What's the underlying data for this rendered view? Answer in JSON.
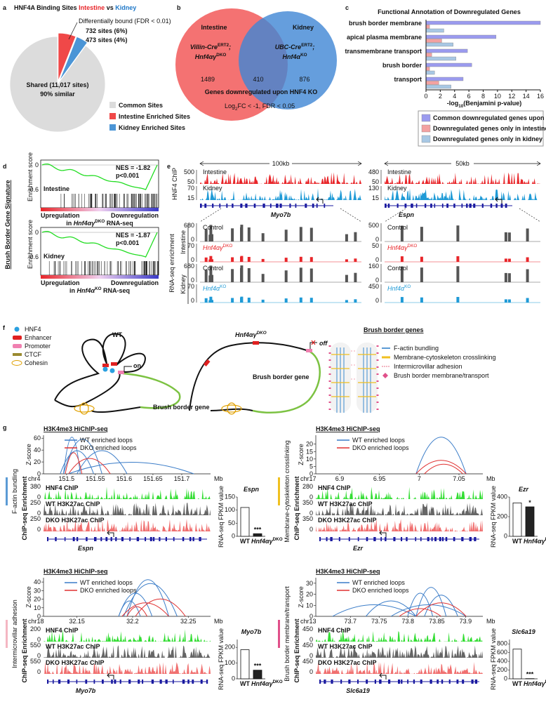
{
  "panel_a": {
    "label": "a",
    "title": [
      {
        "text": "HNF4A Binding Sites "
      },
      {
        "text": "Intestine",
        "color": "#e8262a"
      },
      {
        "text": " vs "
      },
      {
        "text": "Kidney",
        "color": "#1f78c8"
      }
    ],
    "annotation": "Differentially bound (FDR < 0.01)",
    "slices": [
      {
        "name": "Common Sites",
        "value": 90,
        "color": "#dcdcdc"
      },
      {
        "name": "Intestine Enriched Sites",
        "value": 6,
        "color": "#f04848"
      },
      {
        "name": "Kidney Enriched Sites",
        "value": 4,
        "color": "#4b95d6"
      }
    ],
    "slice_labels": [
      "Shared (11,017 sites)",
      "732 sites (6%)",
      "473 sites (4%)"
    ],
    "shared_note": "90% similar"
  },
  "panel_b": {
    "label": "b",
    "sets": [
      {
        "name": "Intestine",
        "color": "#f47272",
        "genotype": [
          {
            "text": "Villin-Cre",
            "style": "i"
          },
          {
            "text": "ERT2",
            "style": "sup"
          },
          {
            "text": ";",
            "style": "i"
          }
        ],
        "genotype2": [
          {
            "text": "Hnf4αγ",
            "style": "i"
          },
          {
            "text": "DKO",
            "style": "sup"
          }
        ]
      },
      {
        "name": "Kidney",
        "color": "#3f86d4",
        "genotype": [
          {
            "text": "UBC-Cre",
            "style": "i"
          },
          {
            "text": "ERT2",
            "style": "sup"
          },
          {
            "text": ";",
            "style": "i"
          }
        ],
        "genotype2": [
          {
            "text": "Hnf4α",
            "style": "i"
          },
          {
            "text": "KO",
            "style": "sup"
          }
        ]
      }
    ],
    "counts": [
      1489,
      410,
      876
    ],
    "caption": "Genes downregulated upon HNF4 KO",
    "threshold": [
      {
        "text": "Log"
      },
      {
        "text": "2",
        "style": "sub"
      },
      {
        "text": "FC < -1, FDR < 0.05"
      }
    ]
  },
  "panel_c": {
    "label": "c",
    "type": "bar",
    "title": "Functional Annotation of Downregulated Genes",
    "categories": [
      "brush border membrane",
      "apical plasma membrane",
      "transmembrane transport",
      "brush border",
      "transport"
    ],
    "series": [
      {
        "name": "Common downregulated genes upon HNF4 loss",
        "color": "#9b9bef",
        "values": [
          16,
          9.8,
          5.8,
          6.4,
          5.2
        ]
      },
      {
        "name": "Downregulated genes only in intestine",
        "color": "#f3a1a1",
        "values": [
          0.5,
          2.2,
          0.8,
          0.5,
          1.8
        ]
      },
      {
        "name": "Downregulated genes only in kidney",
        "color": "#a8c8e4",
        "values": [
          2.5,
          3.8,
          4.2,
          1.2,
          3.5
        ]
      }
    ],
    "xlim": [
      0,
      16
    ],
    "xticks": [
      0,
      2,
      4,
      6,
      8,
      10,
      12,
      14,
      16
    ],
    "xlabel": [
      {
        "text": "-log"
      },
      {
        "text": "10",
        "style": "sub"
      },
      {
        "text": "(Benjamini p-value)"
      }
    ]
  },
  "panel_d": {
    "label": "d",
    "side_title": "Brush Border Gene Signature",
    "ylim": [
      -0.7,
      0.12
    ],
    "plots": [
      {
        "name": "Intestine",
        "color": "#e8262a",
        "nes": "NES = -1.82",
        "p": "p<0.001",
        "ylabel": "Enrichment score",
        "yticks": [
          0,
          -0.6
        ],
        "left": "Upregulation",
        "right": "Downregulation",
        "subtitle": [
          {
            "text": "in "
          },
          {
            "text": "Hnf4αγ",
            "style": "i"
          },
          {
            "text": "DKO",
            "style": "sup"
          },
          {
            "text": " RNA-seq"
          }
        ]
      },
      {
        "name": "Kidney",
        "color": "#1f78c8",
        "nes": "NES = -1.87",
        "p": "p<0.001",
        "ylabel": "Enrichment score",
        "yticks": [
          0,
          -0.6
        ],
        "left": "Upregulation",
        "right": "Downregulation",
        "subtitle": [
          {
            "text": "in "
          },
          {
            "text": "Hnf4α",
            "style": "i"
          },
          {
            "text": "KO",
            "style": "sup"
          },
          {
            "text": " RNA-seq"
          }
        ]
      }
    ]
  },
  "panel_e": {
    "label": "e",
    "chip_label": "HNF4 ChIP",
    "rna_label": "RNA-seq enrichment",
    "groups": [
      "Intestine",
      "Kidney"
    ],
    "loci": [
      {
        "scale": "100kb",
        "gene": "Myo7b",
        "chip": [
          {
            "name": "Intestine",
            "color": "#e8262a",
            "ticks": [
              500,
              50
            ]
          },
          {
            "name": "Kidney",
            "color": "#1f9ad6",
            "ticks": [
              70,
              15
            ]
          }
        ],
        "rna": [
          {
            "name": [
              {
                "text": "Control"
              }
            ],
            "color": "#555555",
            "ticks": [
              680,
              0
            ]
          },
          {
            "name": [
              {
                "text": "Hnf4αγ",
                "style": "i",
                "color": "#e8262a"
              },
              {
                "text": "DKO",
                "style": "sup",
                "color": "#e8262a"
              }
            ],
            "color": "#e8262a",
            "ticks": [
              70,
              0
            ]
          },
          {
            "name": [
              {
                "text": "Control"
              }
            ],
            "color": "#555555",
            "ticks": [
              680,
              0
            ]
          },
          {
            "name": [
              {
                "text": "Hnf4α",
                "style": "i",
                "color": "#1f9ad6"
              },
              {
                "text": "KO",
                "style": "sup",
                "color": "#1f9ad6"
              }
            ],
            "color": "#1f9ad6",
            "ticks": [
              70,
              0
            ]
          }
        ]
      },
      {
        "scale": "50kb",
        "gene": "Espn",
        "chip": [
          {
            "name": "Intestine",
            "color": "#e8262a",
            "ticks": [
              480,
              50
            ]
          },
          {
            "name": "Kidney",
            "color": "#1f9ad6",
            "ticks": [
              130,
              15
            ]
          }
        ],
        "rna": [
          {
            "name": [
              {
                "text": "Control"
              }
            ],
            "color": "#555555",
            "ticks": [
              500,
              0
            ]
          },
          {
            "name": [
              {
                "text": "Hnf4αγ",
                "style": "i",
                "color": "#e8262a"
              },
              {
                "text": "DKO",
                "style": "sup",
                "color": "#e8262a"
              }
            ],
            "color": "#e8262a",
            "ticks": [
              50,
              0
            ]
          },
          {
            "name": [
              {
                "text": "Control"
              }
            ],
            "color": "#555555",
            "ticks": [
              160,
              0
            ]
          },
          {
            "name": [
              {
                "text": "Hnf4α",
                "style": "i",
                "color": "#1f9ad6"
              },
              {
                "text": "KO",
                "style": "sup",
                "color": "#1f9ad6"
              }
            ],
            "color": "#1f9ad6",
            "ticks": [
              450,
              0
            ]
          }
        ]
      }
    ]
  },
  "panel_f": {
    "label": "f",
    "legend": [
      "HNF4",
      "Enhancer",
      "Promoter",
      "CTCF",
      "Cohesin"
    ],
    "wt": "WT",
    "dko": [
      {
        "text": "Hnf4αγ",
        "style": "i"
      },
      {
        "text": "DKO",
        "style": "sup"
      }
    ],
    "on": "on",
    "off": "off",
    "gene_wt": "Brush border gene",
    "gene_dko": "Brush border gene",
    "bb_title": "Brush border genes",
    "bb_legend": [
      {
        "text": "F-actin bundling",
        "color": "#5b9bd5"
      },
      {
        "text": "Membrane-cytoskeleton crosslinking",
        "color": "#f0c020"
      },
      {
        "text": "Intermicrovillar adhesion",
        "color": "#f4b6c2"
      },
      {
        "text": "Brush border membrane/transport",
        "color": "#e0508a"
      }
    ]
  },
  "panel_g": {
    "label": "g",
    "hichip": "H3K4me3 HiChIP-seq",
    "wt_loops": "WT enriched loops",
    "dko_loops": "DKO enriched loops",
    "wt_color": "#3a7cc8",
    "dko_color": "#e03030",
    "zscore": "Z-score",
    "mb": "Mb",
    "tracks": [
      "HNF4 ChIP",
      "WT H3K27ac ChIP",
      "DKO H3K27ac ChIP"
    ],
    "track_colors": [
      "#33dd33",
      "#666666",
      "#f07070"
    ],
    "chip_axis": "ChIP-seq Enrichment",
    "rna_axis": "RNA-seq FPKM value",
    "bar_wt": "WT",
    "bar_dko": [
      {
        "text": "Hnf4αγ",
        "style": "i"
      },
      {
        "text": "DKO",
        "style": "sup"
      }
    ],
    "subpanels": [
      {
        "category": "F-actin bundling",
        "cat_color": "#5b9bd5",
        "chr": "chr4",
        "xlim": [
          151.46,
          151.75
        ],
        "xticks": [
          151.5,
          151.55,
          151.6,
          151.65,
          151.7
        ],
        "zlim": [
          0,
          65
        ],
        "zticks": [
          0,
          20,
          40,
          60
        ],
        "track_ticks": [
          [
            380,
            0
          ],
          [
            250,
            0
          ],
          [
            250,
            0
          ]
        ],
        "gene": "Espn",
        "rna_title": "Espn",
        "rna_ylim": [
          0,
          150
        ],
        "rna_yticks": [
          0,
          50,
          100,
          150
        ],
        "rna_values": [
          110,
          10
        ],
        "sig": "***"
      },
      {
        "category": "Membrane-cytoskeleton crosslinking",
        "cat_color": "#f0c020",
        "chr": "chr17",
        "xlim": [
          6.87,
          7.08
        ],
        "xticks": [
          6.9,
          6.95,
          7,
          7.05
        ],
        "zlim": [
          0,
          26
        ],
        "zticks": [
          0,
          5,
          10,
          15,
          20
        ],
        "track_ticks": [
          [
            280,
            0
          ],
          [
            350,
            0
          ],
          [
            350,
            0
          ]
        ],
        "gene": "Ezr",
        "rna_title": "Ezr",
        "rna_ylim": [
          0,
          400
        ],
        "rna_yticks": [
          0,
          200,
          400
        ],
        "rna_values": [
          340,
          300
        ],
        "sig": "*"
      },
      {
        "category": "Intermicrovillar adhesion",
        "cat_color": "#f4b6c2",
        "chr": "chr18",
        "xlim": [
          32.12,
          32.27
        ],
        "xticks": [
          32.15,
          32.2,
          32.25
        ],
        "zlim": [
          0,
          45
        ],
        "zticks": [
          0,
          10,
          20,
          30,
          40
        ],
        "track_ticks": [
          [
            200,
            0
          ],
          [
            550,
            0
          ],
          [
            550,
            0
          ]
        ],
        "gene": "Myo7b",
        "rna_title": "Myo7b",
        "rna_ylim": [
          0,
          250
        ],
        "rna_yticks": [
          0,
          100,
          200
        ],
        "rna_values": [
          185,
          55
        ],
        "sig": "***"
      },
      {
        "category": "Brush border membrane/transport",
        "cat_color": "#e0508a",
        "chr": "chr13",
        "xlim": [
          73.64,
          73.93
        ],
        "xticks": [
          73.7,
          73.75,
          73.8,
          73.85,
          73.9
        ],
        "zlim": [
          0,
          35
        ],
        "zticks": [
          0,
          10,
          20,
          30
        ],
        "track_ticks": [
          [
            450,
            0
          ],
          [
            450,
            0
          ],
          [
            450,
            0
          ]
        ],
        "gene": "Slc6a19",
        "rna_title": "Slc6a19",
        "rna_ylim": [
          0,
          900
        ],
        "rna_yticks": [
          0,
          200,
          400,
          600,
          800
        ],
        "rna_values": [
          680,
          5
        ],
        "sig": "***"
      }
    ]
  }
}
